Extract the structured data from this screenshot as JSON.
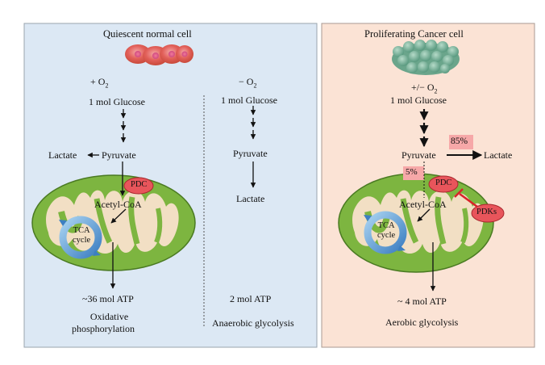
{
  "left_panel": {
    "title": "Quiescent normal cell",
    "aerobic": {
      "condition": "+ O",
      "condition_sub": "2",
      "glucose": "1 mol Glucose",
      "lactate": "Lactate",
      "pyruvate": "Pyruvate",
      "pdc": "PDC",
      "acetyl_coa": "Acetyl-CoA",
      "tca_line1": "TCA",
      "tca_line2": "cycle",
      "atp": "~36 mol ATP",
      "pathway_line1": "Oxidative",
      "pathway_line2": "phosphorylation"
    },
    "anaerobic": {
      "condition": "− O",
      "condition_sub": "2",
      "glucose": "1 mol Glucose",
      "pyruvate": "Pyruvate",
      "lactate": "Lactate",
      "atp": "2 mol ATP",
      "pathway": "Anaerobic glycolysis"
    }
  },
  "right_panel": {
    "title": "Proliferating Cancer cell",
    "condition": "+/− O",
    "condition_sub": "2",
    "glucose": "1 mol Glucose",
    "pyruvate": "Pyruvate",
    "lactate": "Lactate",
    "lactate_percent": "85%",
    "mito_percent": "5%",
    "pdc": "PDC",
    "pdks": "PDKs",
    "acetyl_coa": "Acetyl-CoA",
    "tca_line1": "TCA",
    "tca_line2": "cycle",
    "atp": "~ 4 mol ATP",
    "pathway": "Aerobic glycolysis"
  },
  "colors": {
    "left_bg": "#dce8f4",
    "right_bg": "#fbe3d5",
    "mito_fill": "#7db540",
    "mito_inner": "#f2dfc4",
    "pdc_fill": "#e8555b",
    "highlight": "#f6a8a8",
    "inhibit": "#d9232a"
  }
}
